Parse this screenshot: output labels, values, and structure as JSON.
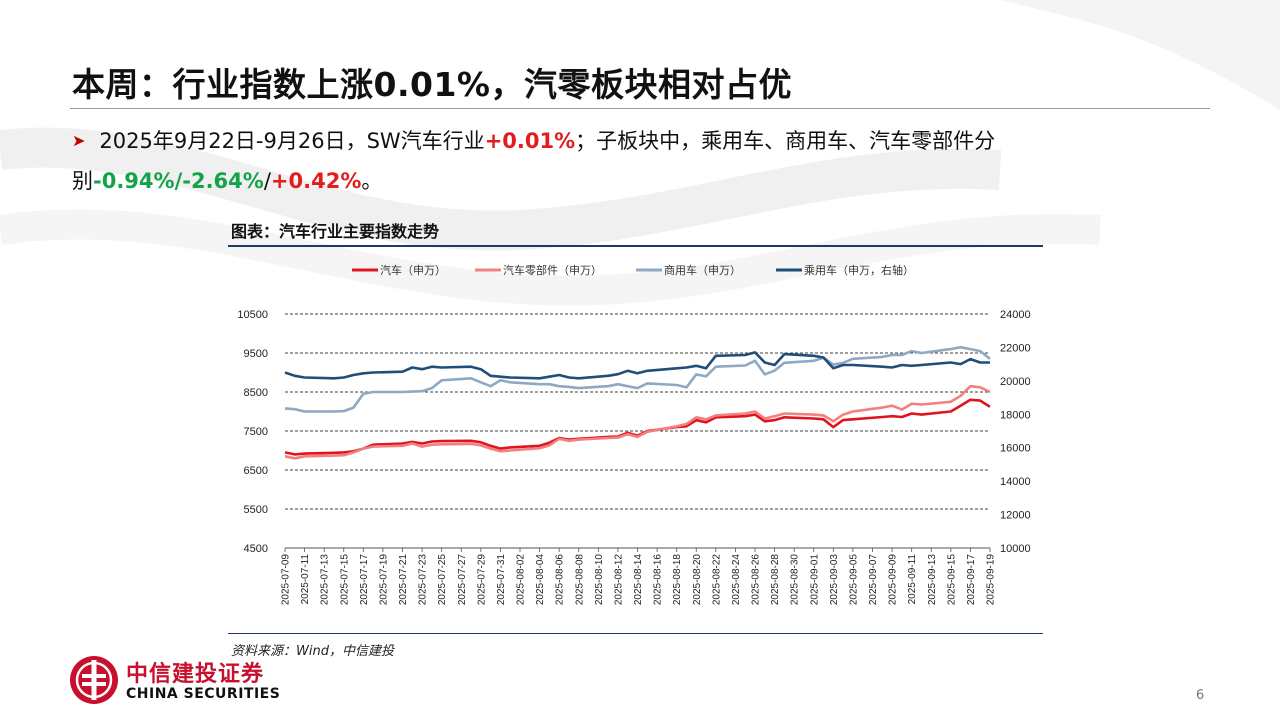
{
  "title": "本周：行业指数上涨0.01%，汽零板块相对占优",
  "bullet": {
    "p1": "2025年9月22日-9月26日，SW汽车行业",
    "v1": "+0.01%",
    "p2": "；子板块中，乘用车、商用车、汽车零部件分别",
    "v2": "-0.94%",
    "s1": "/",
    "v3": "-2.64%",
    "s2": "/",
    "v4": "+0.42%",
    "end": "。"
  },
  "colors": {
    "accent_red": "#e11d1d",
    "accent_green": "#15a34a",
    "navy": "#1f3864",
    "brand_red": "#c8102e"
  },
  "chart_caption": "图表：汽车行业主要指数走势",
  "source": "资料来源：Wind，中信建投",
  "footer": {
    "brand_cn": "中信建投证券",
    "brand_en": "CHINA SECURITIES",
    "page_number": "6",
    "logo_icon": "citic-logo-icon"
  },
  "chart_data": {
    "type": "line",
    "x": [
      "2025-07-09",
      "2025-07-10",
      "2025-07-11",
      "2025-07-14",
      "2025-07-15",
      "2025-07-16",
      "2025-07-17",
      "2025-07-18",
      "2025-07-21",
      "2025-07-22",
      "2025-07-23",
      "2025-07-24",
      "2025-07-25",
      "2025-07-28",
      "2025-07-29",
      "2025-07-30",
      "2025-07-31",
      "2025-08-01",
      "2025-08-04",
      "2025-08-05",
      "2025-08-06",
      "2025-08-07",
      "2025-08-08",
      "2025-08-11",
      "2025-08-12",
      "2025-08-13",
      "2025-08-14",
      "2025-08-15",
      "2025-08-18",
      "2025-08-19",
      "2025-08-20",
      "2025-08-21",
      "2025-08-22",
      "2025-08-25",
      "2025-08-26",
      "2025-08-27",
      "2025-08-28",
      "2025-08-29",
      "2025-09-01",
      "2025-09-02",
      "2025-09-03",
      "2025-09-04",
      "2025-09-05",
      "2025-09-08",
      "2025-09-09",
      "2025-09-10",
      "2025-09-11",
      "2025-09-12",
      "2025-09-15",
      "2025-09-16",
      "2025-09-17",
      "2025-09-18",
      "2025-09-19"
    ],
    "x_tick_labels": [
      "2025-07-09",
      "2025-07-11",
      "2025-07-13",
      "2025-07-15",
      "2025-07-17",
      "2025-07-19",
      "2025-07-21",
      "2025-07-23",
      "2025-07-25",
      "2025-07-27",
      "2025-07-29",
      "2025-07-31",
      "2025-08-02",
      "2025-08-04",
      "2025-08-06",
      "2025-08-08",
      "2025-08-10",
      "2025-08-12",
      "2025-08-14",
      "2025-08-16",
      "2025-08-18",
      "2025-08-20",
      "2025-08-22",
      "2025-08-24",
      "2025-08-26",
      "2025-08-28",
      "2025-08-30",
      "2025-09-01",
      "2025-09-03",
      "2025-09-05",
      "2025-09-07",
      "2025-09-09",
      "2025-09-11",
      "2025-09-13",
      "2025-09-15",
      "2025-09-17",
      "2025-09-19"
    ],
    "y_left": {
      "min": 4500,
      "max": 10500,
      "ticks": [
        4500,
        5500,
        6500,
        7500,
        8500,
        9500,
        10500
      ]
    },
    "y_right": {
      "min": 10000,
      "max": 24000,
      "ticks": [
        10000,
        12000,
        14000,
        16000,
        18000,
        20000,
        22000,
        24000
      ]
    },
    "grid": "horizontal",
    "legend_position": "top",
    "series": [
      {
        "name": "汽车（申万）",
        "color": "#e0141e",
        "axis": "left",
        "values": [
          6950,
          6900,
          6920,
          6940,
          6950,
          6980,
          7050,
          7150,
          7180,
          7220,
          7180,
          7230,
          7240,
          7250,
          7210,
          7120,
          7050,
          7080,
          7120,
          7200,
          7320,
          7280,
          7300,
          7350,
          7360,
          7450,
          7380,
          7500,
          7600,
          7620,
          7780,
          7720,
          7850,
          7880,
          7920,
          7750,
          7780,
          7850,
          7820,
          7800,
          7600,
          7780,
          7800,
          7860,
          7880,
          7860,
          7950,
          7920,
          8000,
          8150,
          8300,
          8280,
          8120
        ]
      },
      {
        "name": "汽车零部件（申万）",
        "color": "#f28080",
        "axis": "left",
        "values": [
          6850,
          6800,
          6850,
          6870,
          6880,
          6950,
          7050,
          7100,
          7120,
          7180,
          7100,
          7150,
          7160,
          7170,
          7130,
          7050,
          6980,
          7000,
          7060,
          7130,
          7300,
          7250,
          7280,
          7320,
          7330,
          7420,
          7350,
          7480,
          7620,
          7680,
          7850,
          7800,
          7900,
          7950,
          8000,
          7820,
          7880,
          7950,
          7920,
          7900,
          7750,
          7920,
          8000,
          8100,
          8150,
          8050,
          8200,
          8180,
          8250,
          8400,
          8650,
          8620,
          8500
        ]
      },
      {
        "name": "商用车（申万）",
        "color": "#8ea9c1",
        "axis": "left",
        "values": [
          8080,
          8060,
          8000,
          8000,
          8010,
          8100,
          8450,
          8500,
          8500,
          8510,
          8520,
          8600,
          8800,
          8850,
          8750,
          8650,
          8800,
          8750,
          8700,
          8700,
          8650,
          8630,
          8600,
          8650,
          8700,
          8650,
          8600,
          8720,
          8680,
          8620,
          8950,
          8900,
          9150,
          9180,
          9300,
          8950,
          9050,
          9250,
          9300,
          9380,
          9200,
          9250,
          9350,
          9400,
          9450,
          9450,
          9550,
          9500,
          9600,
          9650,
          9600,
          9550,
          9350
        ]
      },
      {
        "name": "乘用车（申万，右轴）",
        "color": "#1f4e79",
        "axis": "right",
        "values": [
          20500,
          20300,
          20200,
          20150,
          20200,
          20350,
          20450,
          20500,
          20550,
          20800,
          20700,
          20850,
          20800,
          20850,
          20700,
          20300,
          20250,
          20200,
          20150,
          20250,
          20350,
          20200,
          20150,
          20300,
          20400,
          20600,
          20450,
          20600,
          20750,
          20800,
          20900,
          20750,
          21500,
          21550,
          21700,
          21100,
          20950,
          21600,
          21500,
          21400,
          20750,
          20950,
          20950,
          20850,
          20800,
          20950,
          20900,
          20950,
          21100,
          21000,
          21300,
          21100,
          21100
        ]
      }
    ]
  }
}
